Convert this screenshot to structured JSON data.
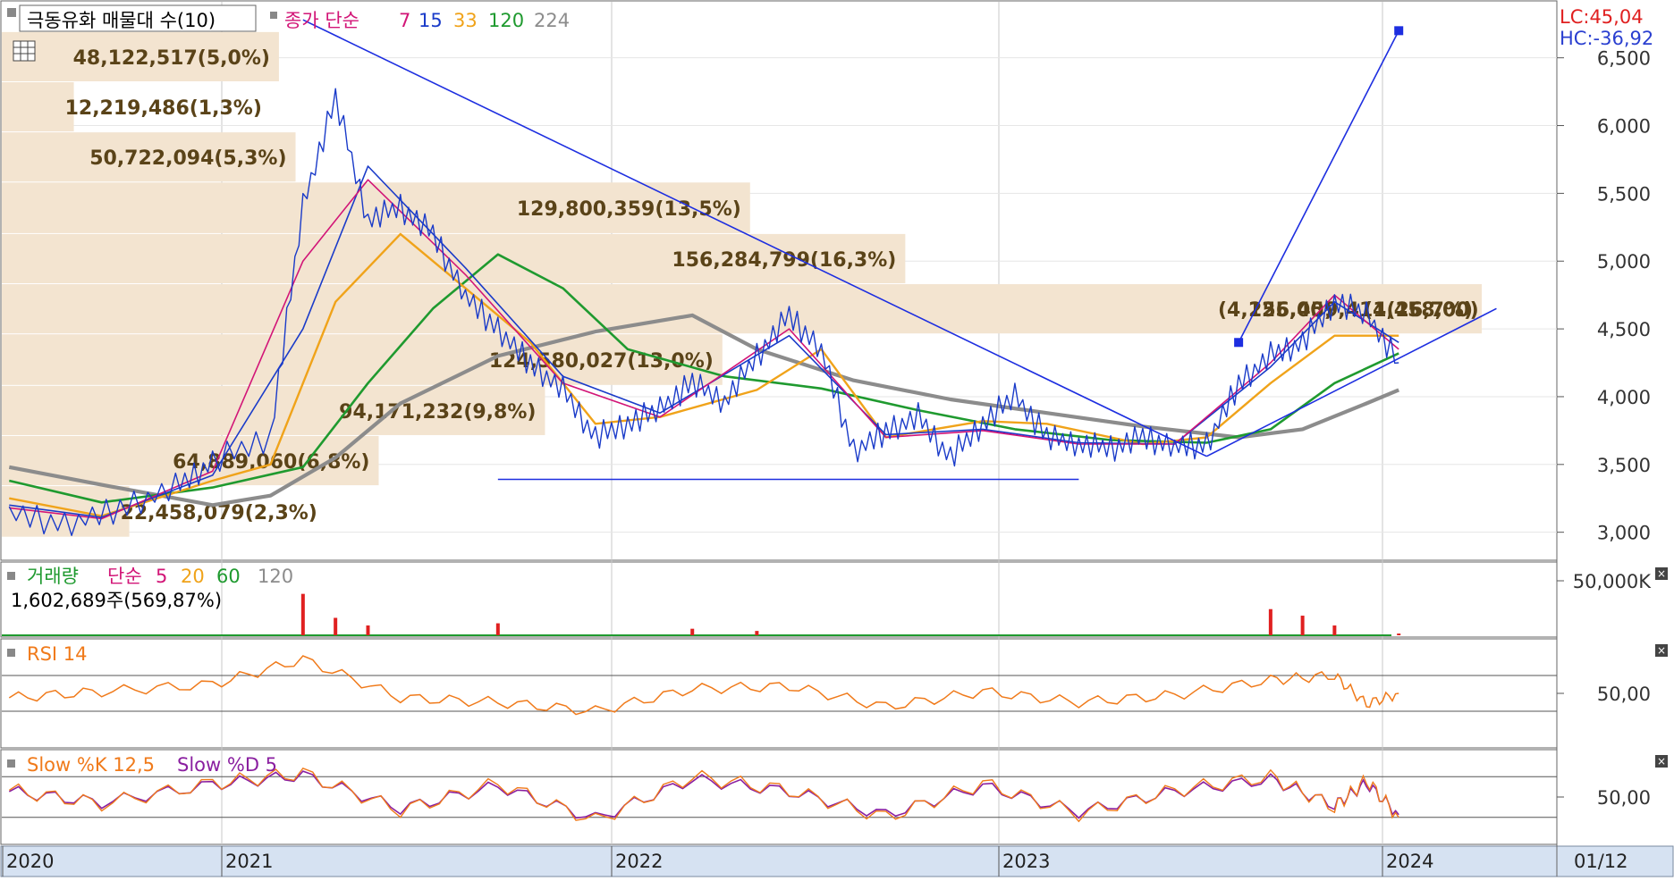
{
  "colors": {
    "volume_profile": "#f3e4d0",
    "annotation_text": "#5a4318",
    "ma7": "#d21577",
    "ma15": "#1a3bc9",
    "ma33": "#f0a31a",
    "ma120": "#1f9a2f",
    "ma224": "#8c8c8c",
    "trendline": "#1d2ee0",
    "lc": "#e02020",
    "hc": "#2a3fd0",
    "rsi": "#f07a1a",
    "slow_k": "#f07a1a",
    "slow_d": "#8a1fa0"
  },
  "price_header": {
    "title": "극동유화 매물대 수(10)",
    "indicator_label": "종가 단순",
    "periods": [
      "7",
      "15",
      "33",
      "120",
      "224"
    ]
  },
  "volume_header": {
    "title": "거래량",
    "indicator_label": "단순",
    "periods": [
      "5",
      "20",
      "60",
      "120"
    ],
    "last_volume": "1,602,689주(569,87%)"
  },
  "rsi_header": {
    "title": "RSI 14"
  },
  "stoch_header": {
    "k_label": "Slow %K 12,5",
    "d_label": "Slow %D 5"
  },
  "top_right": {
    "lc": "LC:45,04",
    "hc": "HC:-36,92"
  },
  "chart_data": [
    {
      "type": "line",
      "title": "극동유화 매물대 수(10)",
      "x_axis_labels": [
        "2020",
        "2021",
        "2022",
        "2023",
        "2024",
        "01/12"
      ],
      "y_ticks": [
        "3,000",
        "3,500",
        "4,000",
        "4,500",
        "5,000",
        "5,500",
        "6,000",
        "6,500"
      ],
      "ylim": [
        2800,
        6900
      ],
      "volume_profile": [
        {
          "price_low": 2960,
          "price_high": 3340,
          "label": "22,458,079(2,3%)",
          "share": 2.3
        },
        {
          "price_low": 3340,
          "price_high": 3710,
          "label": "64,889,060(6,8%)",
          "share": 6.8
        },
        {
          "price_low": 3710,
          "price_high": 4080,
          "label": "94,171,232(9,8%)",
          "share": 9.8
        },
        {
          "price_low": 4080,
          "price_high": 4460,
          "label": "124,580,027(13,0%)",
          "share": 13.0
        },
        {
          "price_low": 4460,
          "price_high": 4830,
          "label": "256,459,411(26,7%)",
          "share": 26.7
        },
        {
          "price_low": 4830,
          "price_high": 5200,
          "label": "156,284,799(16,3%)",
          "share": 16.3
        },
        {
          "price_low": 5200,
          "price_high": 5580,
          "label": "129,800,359(13,5%)",
          "share": 13.5
        },
        {
          "price_low": 5580,
          "price_high": 5950,
          "label": "50,722,094(5,3%)",
          "share": 5.3
        },
        {
          "price_low": 5950,
          "price_high": 6320,
          "label": "12,219,486(1,3%)",
          "share": 1.3
        },
        {
          "price_low": 6320,
          "price_high": 6690,
          "label": "48,122,517(5,0%)",
          "share": 5.0
        }
      ],
      "extra_labels": [
        "(4,125,00)",
        "(4,458,00)"
      ],
      "series": [
        {
          "name": "종가",
          "points": [
            [
              "2020-01",
              3150
            ],
            [
              "2020-04",
              3060
            ],
            [
              "2020-07",
              3180
            ],
            [
              "2020-10",
              3330
            ],
            [
              "2020-12",
              3520
            ],
            [
              "2021-02",
              3700
            ],
            [
              "2021-03",
              5400
            ],
            [
              "2021-04",
              6200
            ],
            [
              "2021-05",
              5300
            ],
            [
              "2021-06",
              5400
            ],
            [
              "2021-07",
              5200
            ],
            [
              "2021-08",
              4750
            ],
            [
              "2021-09",
              4500
            ],
            [
              "2021-10",
              4250
            ],
            [
              "2021-11",
              4050
            ],
            [
              "2021-12",
              3700
            ],
            [
              "2022-01",
              3800
            ],
            [
              "2022-02",
              3900
            ],
            [
              "2022-03",
              4100
            ],
            [
              "2022-04",
              3960
            ],
            [
              "2022-05",
              4300
            ],
            [
              "2022-06",
              4600
            ],
            [
              "2022-07",
              4350
            ],
            [
              "2022-08",
              3600
            ],
            [
              "2022-09",
              3750
            ],
            [
              "2022-10",
              3850
            ],
            [
              "2022-11",
              3550
            ],
            [
              "2022-12",
              3800
            ],
            [
              "2023-01",
              4000
            ],
            [
              "2023-02",
              3700
            ],
            [
              "2023-03",
              3650
            ],
            [
              "2023-04",
              3620
            ],
            [
              "2023-05",
              3700
            ],
            [
              "2023-06",
              3640
            ],
            [
              "2023-07",
              3650
            ],
            [
              "2023-08",
              4100
            ],
            [
              "2023-09",
              4300
            ],
            [
              "2023-10",
              4400
            ],
            [
              "2023-11",
              4700
            ],
            [
              "2023-12",
              4600
            ],
            [
              "2024-01",
              4250
            ]
          ]
        },
        {
          "name": "7",
          "points": [
            [
              "2020-01",
              3180
            ],
            [
              "2020-06",
              3100
            ],
            [
              "2020-12",
              3450
            ],
            [
              "2021-03",
              5000
            ],
            [
              "2021-05",
              5600
            ],
            [
              "2021-08",
              4900
            ],
            [
              "2021-11",
              4100
            ],
            [
              "2022-02",
              3850
            ],
            [
              "2022-06",
              4500
            ],
            [
              "2022-09",
              3700
            ],
            [
              "2022-12",
              3750
            ],
            [
              "2023-03",
              3650
            ],
            [
              "2023-06",
              3650
            ],
            [
              "2023-09",
              4250
            ],
            [
              "2023-11",
              4750
            ],
            [
              "2024-01",
              4350
            ]
          ]
        },
        {
          "name": "15",
          "points": [
            [
              "2020-01",
              3200
            ],
            [
              "2020-06",
              3110
            ],
            [
              "2020-12",
              3420
            ],
            [
              "2021-03",
              4500
            ],
            [
              "2021-05",
              5700
            ],
            [
              "2021-08",
              4950
            ],
            [
              "2021-11",
              4150
            ],
            [
              "2022-02",
              3880
            ],
            [
              "2022-06",
              4450
            ],
            [
              "2022-09",
              3720
            ],
            [
              "2022-12",
              3760
            ],
            [
              "2023-03",
              3660
            ],
            [
              "2023-06",
              3650
            ],
            [
              "2023-09",
              4220
            ],
            [
              "2023-11",
              4700
            ],
            [
              "2024-01",
              4400
            ]
          ]
        },
        {
          "name": "33",
          "points": [
            [
              "2020-01",
              3250
            ],
            [
              "2020-06",
              3120
            ],
            [
              "2020-12",
              3380
            ],
            [
              "2021-02",
              3500
            ],
            [
              "2021-04",
              4700
            ],
            [
              "2021-06",
              5200
            ],
            [
              "2021-08",
              4800
            ],
            [
              "2021-10",
              4400
            ],
            [
              "2021-12",
              3800
            ],
            [
              "2022-02",
              3850
            ],
            [
              "2022-05",
              4050
            ],
            [
              "2022-07",
              4350
            ],
            [
              "2022-09",
              3700
            ],
            [
              "2022-12",
              3820
            ],
            [
              "2023-02",
              3800
            ],
            [
              "2023-05",
              3650
            ],
            [
              "2023-07",
              3700
            ],
            [
              "2023-09",
              4100
            ],
            [
              "2023-11",
              4450
            ],
            [
              "2024-01",
              4450
            ]
          ]
        },
        {
          "name": "120",
          "points": [
            [
              "2020-01",
              3380
            ],
            [
              "2020-06",
              3220
            ],
            [
              "2020-12",
              3330
            ],
            [
              "2021-03",
              3480
            ],
            [
              "2021-05",
              4100
            ],
            [
              "2021-07",
              4650
            ],
            [
              "2021-09",
              5050
            ],
            [
              "2021-11",
              4800
            ],
            [
              "2022-01",
              4350
            ],
            [
              "2022-04",
              4150
            ],
            [
              "2022-07",
              4060
            ],
            [
              "2022-10",
              3900
            ],
            [
              "2023-01",
              3760
            ],
            [
              "2023-04",
              3680
            ],
            [
              "2023-07",
              3660
            ],
            [
              "2023-09",
              3760
            ],
            [
              "2023-11",
              4100
            ],
            [
              "2024-01",
              4320
            ]
          ]
        },
        {
          "name": "224",
          "points": [
            [
              "2020-01",
              3480
            ],
            [
              "2020-06",
              3350
            ],
            [
              "2020-12",
              3200
            ],
            [
              "2021-02",
              3270
            ],
            [
              "2021-04",
              3550
            ],
            [
              "2021-06",
              3950
            ],
            [
              "2021-09",
              4300
            ],
            [
              "2021-12",
              4480
            ],
            [
              "2022-03",
              4600
            ],
            [
              "2022-05",
              4350
            ],
            [
              "2022-08",
              4120
            ],
            [
              "2022-11",
              3980
            ],
            [
              "2023-02",
              3880
            ],
            [
              "2023-05",
              3780
            ],
            [
              "2023-08",
              3700
            ],
            [
              "2023-10",
              3760
            ],
            [
              "2023-12",
              3950
            ],
            [
              "2024-01",
              4050
            ]
          ]
        }
      ],
      "trendlines": [
        {
          "from": [
            "2021-03",
            6780
          ],
          "to": [
            "2023-07",
            3560
          ]
        },
        {
          "from": [
            "2021-09",
            3390
          ],
          "to": [
            "2023-03",
            3390
          ]
        },
        {
          "from": [
            "2023-08",
            4400
          ],
          "to": [
            "2024-01",
            6700
          ]
        },
        {
          "from": [
            "2023-07",
            3560
          ],
          "to": [
            "2024-04",
            4650
          ]
        }
      ]
    },
    {
      "type": "bar",
      "title": "거래량",
      "y_ticks": [
        "50,000K"
      ],
      "series": [
        {
          "name": "거래량",
          "points": [
            [
              "2021-03",
              38000
            ],
            [
              "2021-04",
              16000
            ],
            [
              "2021-05",
              9000
            ],
            [
              "2021-09",
              11000
            ],
            [
              "2022-03",
              6000
            ],
            [
              "2022-05",
              4000
            ],
            [
              "2023-09",
              24000
            ],
            [
              "2023-10",
              18000
            ],
            [
              "2023-11",
              9000
            ],
            [
              "2024-01",
              1602
            ]
          ]
        }
      ]
    },
    {
      "type": "line",
      "title": "RSI 14",
      "y_ticks": [
        "50,00"
      ],
      "ylim": [
        0,
        100
      ],
      "series": [
        {
          "name": "RSI 14",
          "points": [
            [
              "2020-01",
              45
            ],
            [
              "2020-06",
              52
            ],
            [
              "2020-12",
              60
            ],
            [
              "2021-03",
              88
            ],
            [
              "2021-06",
              45
            ],
            [
              "2021-09",
              40
            ],
            [
              "2021-12",
              30
            ],
            [
              "2022-03",
              55
            ],
            [
              "2022-06",
              58
            ],
            [
              "2022-09",
              35
            ],
            [
              "2022-12",
              52
            ],
            [
              "2023-03",
              40
            ],
            [
              "2023-06",
              48
            ],
            [
              "2023-09",
              65
            ],
            [
              "2023-11",
              70
            ],
            [
              "2023-12",
              38
            ],
            [
              "2024-01",
              50
            ]
          ]
        }
      ]
    },
    {
      "type": "line",
      "title": "Slow %K 12,5 / Slow %D 5",
      "y_ticks": [
        "50,00"
      ],
      "ylim": [
        0,
        100
      ],
      "series": [
        {
          "name": "Slow %K 12,5",
          "points": [
            [
              "2020-01",
              60
            ],
            [
              "2020-06",
              40
            ],
            [
              "2020-12",
              70
            ],
            [
              "2021-03",
              85
            ],
            [
              "2021-06",
              30
            ],
            [
              "2021-09",
              70
            ],
            [
              "2021-12",
              15
            ],
            [
              "2022-03",
              80
            ],
            [
              "2022-06",
              60
            ],
            [
              "2022-09",
              20
            ],
            [
              "2022-12",
              70
            ],
            [
              "2023-03",
              25
            ],
            [
              "2023-06",
              60
            ],
            [
              "2023-09",
              80
            ],
            [
              "2023-11",
              35
            ],
            [
              "2023-12",
              75
            ],
            [
              "2024-01",
              20
            ]
          ]
        },
        {
          "name": "Slow %D 5",
          "points": [
            [
              "2020-01",
              58
            ],
            [
              "2020-06",
              42
            ],
            [
              "2020-12",
              68
            ],
            [
              "2021-03",
              82
            ],
            [
              "2021-06",
              33
            ],
            [
              "2021-09",
              66
            ],
            [
              "2021-12",
              18
            ],
            [
              "2022-03",
              76
            ],
            [
              "2022-06",
              58
            ],
            [
              "2022-09",
              24
            ],
            [
              "2022-12",
              66
            ],
            [
              "2023-03",
              28
            ],
            [
              "2023-06",
              58
            ],
            [
              "2023-09",
              76
            ],
            [
              "2023-11",
              38
            ],
            [
              "2023-12",
              70
            ],
            [
              "2024-01",
              24
            ]
          ]
        }
      ]
    }
  ]
}
